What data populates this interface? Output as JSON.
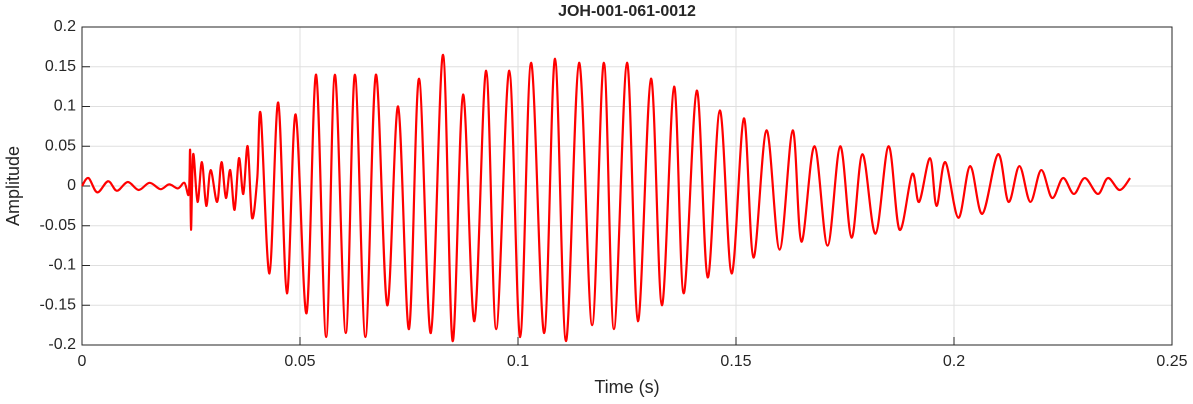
{
  "chart_data": {
    "type": "line",
    "title": "JOH-001-061-0012",
    "x_label": "Time (s)",
    "y_label": "Amplitude",
    "color": "#ff0000",
    "grid": true,
    "xlim": [
      0,
      0.25
    ],
    "xticks": [
      0,
      0.05,
      0.1,
      0.15,
      0.2,
      0.25
    ],
    "ylim": [
      -0.2,
      0.2
    ],
    "yticks": [
      -0.2,
      -0.15,
      -0.1,
      -0.05,
      0,
      0.05,
      0.1,
      0.15,
      0.2
    ],
    "x": [
      0,
      0.0015,
      0.0035,
      0.006,
      0.008,
      0.0105,
      0.013,
      0.0155,
      0.018,
      0.02,
      0.022,
      0.0235,
      0.0245,
      0.0248,
      0.025,
      0.0255,
      0.0265,
      0.0275,
      0.0285,
      0.0295,
      0.031,
      0.032,
      0.033,
      0.034,
      0.035,
      0.036,
      0.037,
      0.038,
      0.039,
      0.0402,
      0.041,
      0.043,
      0.045,
      0.047,
      0.049,
      0.0515,
      0.0537,
      0.056,
      0.058,
      0.0605,
      0.0626,
      0.065,
      0.0674,
      0.07,
      0.0725,
      0.075,
      0.0773,
      0.08,
      0.0828,
      0.085,
      0.0874,
      0.09,
      0.0927,
      0.095,
      0.098,
      0.1005,
      0.103,
      0.106,
      0.1085,
      0.111,
      0.114,
      0.117,
      0.1197,
      0.122,
      0.125,
      0.1275,
      0.1305,
      0.133,
      0.1358,
      0.138,
      0.141,
      0.1435,
      0.1463,
      0.149,
      0.1518,
      0.154,
      0.157,
      0.16,
      0.163,
      0.165,
      0.168,
      0.171,
      0.1739,
      0.1765,
      0.179,
      0.182,
      0.185,
      0.1875,
      0.1904,
      0.192,
      0.1945,
      0.196,
      0.198,
      0.201,
      0.2037,
      0.2065,
      0.2101,
      0.2125,
      0.215,
      0.2175,
      0.22,
      0.2225,
      0.225,
      0.2275,
      0.23,
      0.233,
      0.2353,
      0.238,
      0.2404
    ],
    "values": [
      0,
      0.01,
      -0.008,
      0.006,
      -0.006,
      0.005,
      -0.005,
      0.004,
      -0.004,
      0.002,
      -0.003,
      0.004,
      -0.01,
      0.045,
      -0.055,
      0.04,
      -0.02,
      0.03,
      -0.025,
      0.02,
      -0.02,
      0.03,
      -0.015,
      0.02,
      -0.03,
      0.035,
      -0.01,
      0.05,
      -0.04,
      0.01,
      0.09,
      -0.11,
      0.105,
      -0.135,
      0.09,
      -0.16,
      0.14,
      -0.19,
      0.14,
      -0.185,
      0.14,
      -0.19,
      0.14,
      -0.15,
      0.1,
      -0.18,
      0.135,
      -0.185,
      0.165,
      -0.195,
      0.115,
      -0.17,
      0.145,
      -0.18,
      0.145,
      -0.19,
      0.155,
      -0.185,
      0.16,
      -0.195,
      0.155,
      -0.175,
      0.155,
      -0.18,
      0.155,
      -0.17,
      0.135,
      -0.15,
      0.125,
      -0.135,
      0.12,
      -0.115,
      0.095,
      -0.11,
      0.085,
      -0.09,
      0.07,
      -0.08,
      0.07,
      -0.07,
      0.05,
      -0.075,
      0.05,
      -0.065,
      0.04,
      -0.06,
      0.05,
      -0.055,
      0.015,
      -0.02,
      0.035,
      -0.025,
      0.03,
      -0.04,
      0.025,
      -0.035,
      0.04,
      -0.02,
      0.025,
      -0.02,
      0.02,
      -0.015,
      0.01,
      -0.01,
      0.01,
      -0.01,
      0.01,
      -0.005,
      0.01
    ]
  }
}
